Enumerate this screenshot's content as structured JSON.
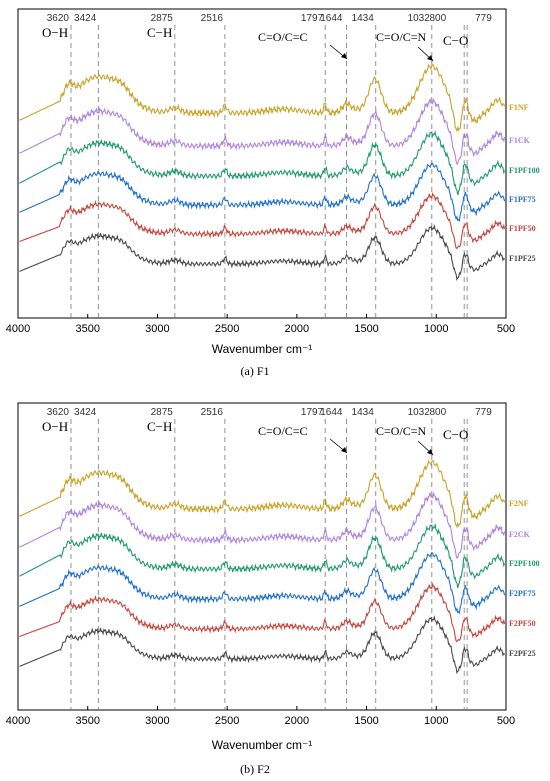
{
  "chart_data": [
    {
      "type": "line",
      "caption": "(a) F1",
      "xlabel": "Wavenumber cm⁻¹",
      "xlim": [
        4000,
        500
      ],
      "x_ticks": [
        "4000",
        "3500",
        "3000",
        "2500",
        "2000",
        "1500",
        "1000",
        "500"
      ],
      "peaks": [
        "3620",
        "3424",
        "2875",
        "2516",
        "1797",
        "1644",
        "1434",
        "1032",
        "800",
        "779"
      ],
      "annotations": [
        "O−H",
        "C−H",
        "C=O/C=C",
        "C=O/C=N",
        "C−O"
      ],
      "series": [
        {
          "name": "F1NF",
          "color": "#c9a227"
        },
        {
          "name": "F1CK",
          "color": "#b084dd"
        },
        {
          "name": "F1PF100",
          "color": "#1f9a6b"
        },
        {
          "name": "F1PF75",
          "color": "#1f6fcf"
        },
        {
          "name": "F1PF50",
          "color": "#c4473d"
        },
        {
          "name": "F1PF25",
          "color": "#4a4a4a"
        }
      ]
    },
    {
      "type": "line",
      "caption": "(b) F2",
      "xlabel": "Wavenumber cm⁻¹",
      "xlim": [
        4000,
        500
      ],
      "x_ticks": [
        "4000",
        "3500",
        "3000",
        "2500",
        "2000",
        "1500",
        "1000",
        "500"
      ],
      "peaks": [
        "3620",
        "3424",
        "2875",
        "2516",
        "1797",
        "1644",
        "1434",
        "1032",
        "800",
        "779"
      ],
      "annotations": [
        "O−H",
        "C−H",
        "C=O/C=C",
        "C=O/C=N",
        "C−O"
      ],
      "series": [
        {
          "name": "F2NF",
          "color": "#c9a227"
        },
        {
          "name": "F2CK",
          "color": "#b084dd"
        },
        {
          "name": "F2PF100",
          "color": "#1f9a6b"
        },
        {
          "name": "F2PF75",
          "color": "#1f6fcf"
        },
        {
          "name": "F2PF50",
          "color": "#c4473d"
        },
        {
          "name": "F2PF25",
          "color": "#4a4a4a"
        }
      ]
    }
  ]
}
